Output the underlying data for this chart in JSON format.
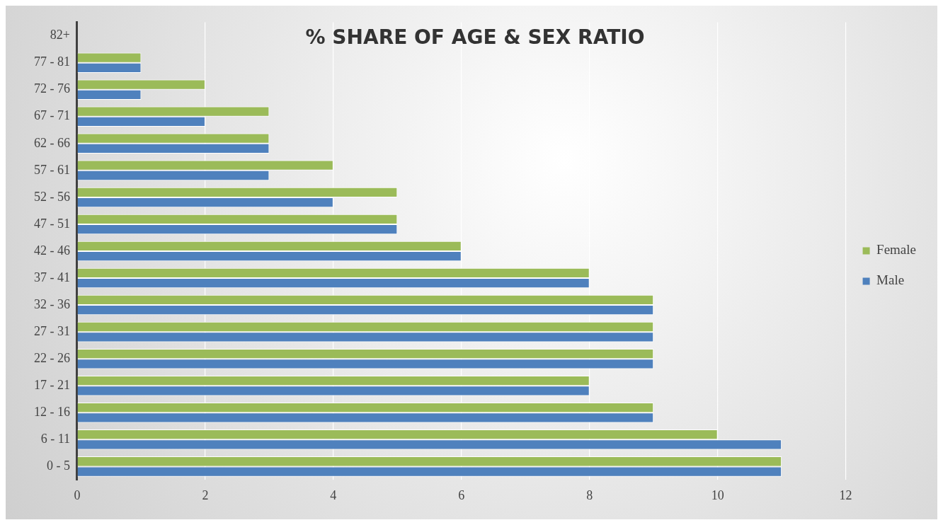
{
  "chart_data": {
    "type": "bar",
    "orientation": "horizontal",
    "title": "% SHARE OF AGE & SEX RATIO",
    "categories": [
      "82+",
      "77 - 81",
      "72 - 76",
      "67 - 71",
      "62 - 66",
      "57 - 61",
      "52 - 56",
      "47 - 51",
      "42 - 46",
      "37 - 41",
      "32 - 36",
      "27 - 31",
      "22 - 26",
      "17 - 21",
      "12 - 16",
      "6 - 11",
      "0 - 5"
    ],
    "series": [
      {
        "name": "Female",
        "color": "#9bbb59",
        "values": [
          0,
          1,
          2,
          3,
          3,
          4,
          5,
          5,
          6,
          8,
          9,
          9,
          9,
          8,
          9,
          10,
          11
        ]
      },
      {
        "name": "Male",
        "color": "#4f81bd",
        "values": [
          0,
          1,
          1,
          2,
          3,
          3,
          4,
          5,
          6,
          8,
          9,
          9,
          9,
          8,
          9,
          11,
          11
        ]
      }
    ],
    "xlim": [
      0,
      12
    ],
    "xticks": [
      0,
      2,
      4,
      6,
      8,
      10,
      12
    ],
    "grid": "x",
    "legend": "right"
  }
}
